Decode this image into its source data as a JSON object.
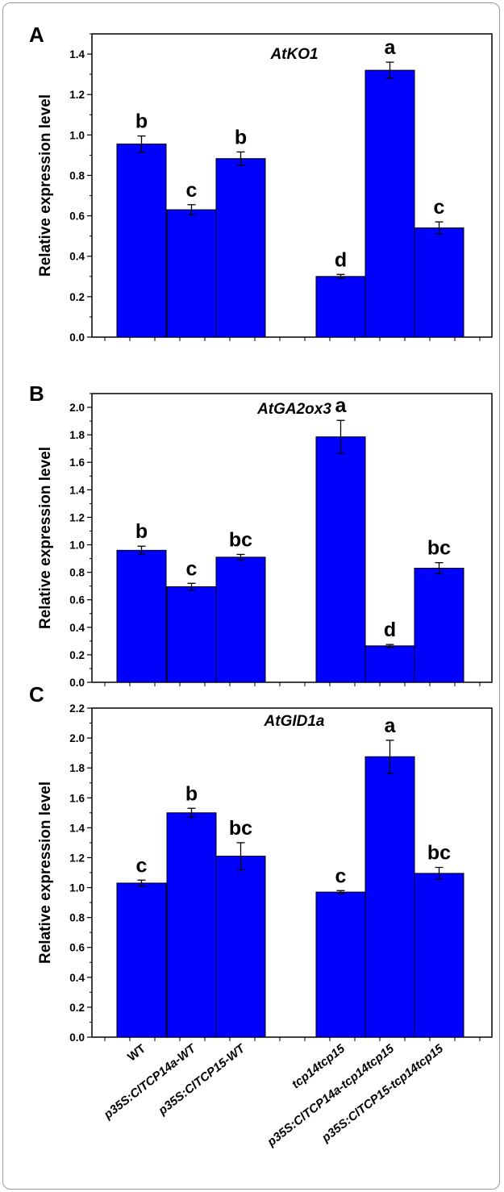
{
  "chart_data": [
    {
      "type": "bar",
      "panel": "A",
      "title": "AtKO1",
      "ylabel": "Relative expression level",
      "ylim": [
        0.0,
        1.5
      ],
      "yticks": [
        "0.0",
        "0.2",
        "0.4",
        "0.6",
        "0.8",
        "1.0",
        "1.2",
        "1.4"
      ],
      "categories": [
        "WT",
        "p35S:ClTCP14a-WT",
        "p35S:ClTCP15-WT",
        "tcp14tcp15",
        "p35S:ClTCP14a-tcp14tcp15",
        "p35S:ClTCP15-tcp14tcp15"
      ],
      "values": [
        0.955,
        0.63,
        0.883,
        0.3,
        1.32,
        0.54
      ],
      "errors": [
        0.04,
        0.025,
        0.033,
        0.01,
        0.04,
        0.03
      ],
      "significance": [
        "b",
        "c",
        "b",
        "d",
        "a",
        "c"
      ],
      "color": "#0000ff"
    },
    {
      "type": "bar",
      "panel": "B",
      "title": "AtGA2ox3",
      "ylabel": "Relative expression level",
      "ylim": [
        0.0,
        2.1
      ],
      "yticks": [
        "0.0",
        "0.2",
        "0.4",
        "0.6",
        "0.8",
        "1.0",
        "1.2",
        "1.4",
        "1.6",
        "1.8",
        "2.0"
      ],
      "categories": [
        "WT",
        "p35S:ClTCP14a-WT",
        "p35S:ClTCP15-WT",
        "tcp14tcp15",
        "p35S:ClTCP14a-tcp14tcp15",
        "p35S:ClTCP15-tcp14tcp15"
      ],
      "values": [
        0.96,
        0.695,
        0.91,
        1.785,
        0.265,
        0.83
      ],
      "errors": [
        0.03,
        0.025,
        0.02,
        0.12,
        0.01,
        0.04
      ],
      "significance": [
        "b",
        "c",
        "bc",
        "a",
        "d",
        "bc"
      ],
      "color": "#0000ff"
    },
    {
      "type": "bar",
      "panel": "C",
      "title": "AtGID1a",
      "ylabel": "Relative expression level",
      "ylim": [
        0.0,
        2.2
      ],
      "yticks": [
        "0.0",
        "0.2",
        "0.4",
        "0.6",
        "0.8",
        "1.0",
        "1.2",
        "1.4",
        "1.6",
        "1.8",
        "2.0",
        "2.2"
      ],
      "categories": [
        "WT",
        "p35S:ClTCP14a-WT",
        "p35S:ClTCP15-WT",
        "tcp14tcp15",
        "p35S:ClTCP14a-tcp14tcp15",
        "p35S:ClTCP15-tcp14tcp15"
      ],
      "values": [
        1.03,
        1.5,
        1.21,
        0.97,
        1.875,
        1.095
      ],
      "errors": [
        0.02,
        0.03,
        0.09,
        0.01,
        0.11,
        0.04
      ],
      "significance": [
        "c",
        "b",
        "bc",
        "c",
        "a",
        "bc"
      ],
      "color": "#0000ff"
    }
  ]
}
